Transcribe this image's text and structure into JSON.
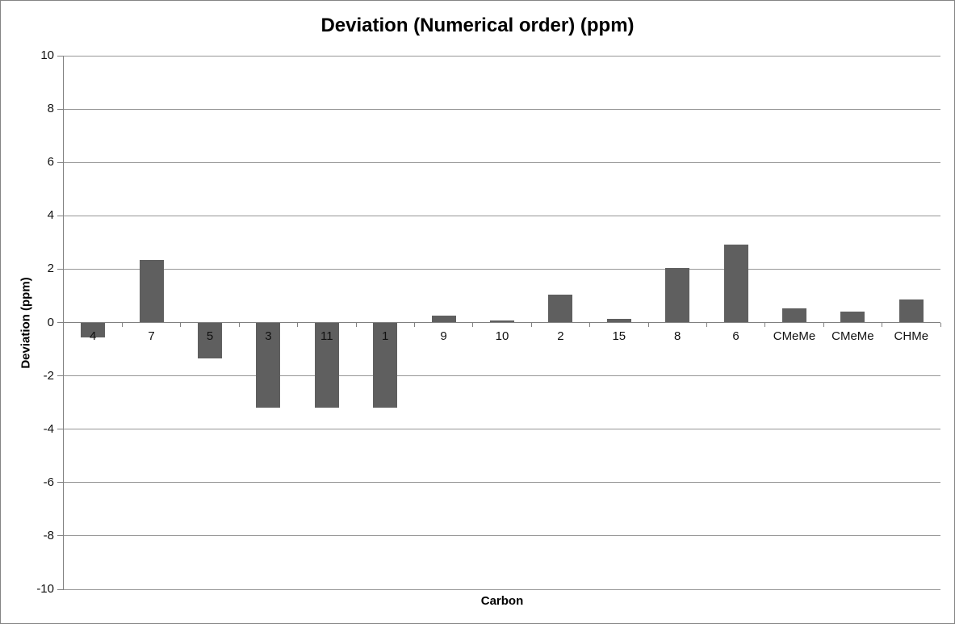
{
  "chart_data": {
    "type": "bar",
    "title": "Deviation (Numerical order) (ppm)",
    "xlabel": "Carbon",
    "ylabel": "Deviation (ppm)",
    "categories": [
      "4",
      "7",
      "5",
      "3",
      "11",
      "1",
      "9",
      "10",
      "2",
      "15",
      "8",
      "6",
      "CMeMe",
      "CMeMe",
      "CHMe"
    ],
    "values": [
      -0.56,
      2.34,
      -1.36,
      -3.19,
      -3.19,
      -3.19,
      0.27,
      0.08,
      1.03,
      0.15,
      2.03,
      2.93,
      0.53,
      0.4,
      0.85
    ],
    "ylim": [
      -10,
      10
    ],
    "ytick_step": 2,
    "ytick_labels": [
      "10",
      "8",
      "6",
      "4",
      "2",
      "0",
      "-2",
      "-4",
      "-6",
      "-8",
      "-10"
    ],
    "grid": true,
    "legend": false,
    "colors": {
      "bar": "#5f5f5f",
      "gridline": "#969696",
      "axis": "#808080",
      "text": "#111111",
      "background": "#ffffff"
    }
  }
}
